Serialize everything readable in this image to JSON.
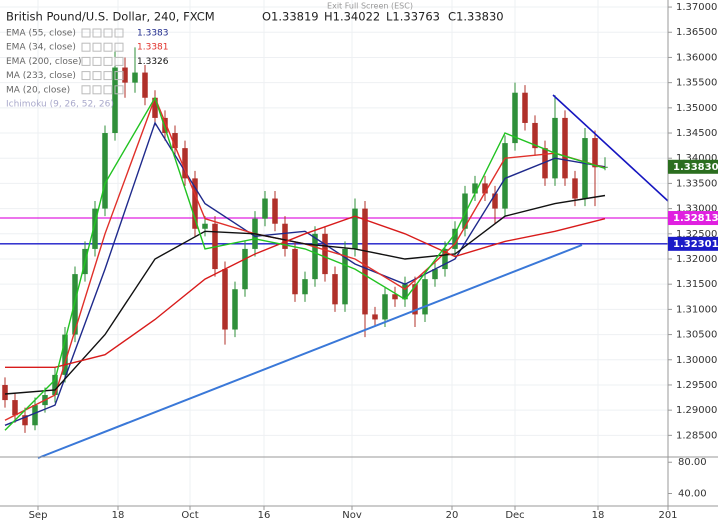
{
  "chart_data": [
    {
      "type": "candlestick",
      "title": "British Pound/U.S. Dollar, 240, FXCM",
      "ohlc_header": [
        "O1.33819",
        "H1.34022",
        "L1.33763",
        "C1.33830"
      ],
      "fullscreen_note": "Exit Full Screen (ESC)",
      "ichimoku": "Ichimoku (9, 26, 52, 26)",
      "up_color": "#2f8f3a",
      "down_color": "#b0302a",
      "xlim": [
        -0.5,
        66.3
      ],
      "ylim": [
        1.2811,
        1.3714
      ],
      "grid": true,
      "xticks": [
        {
          "value": 3.3,
          "label": "Sep"
        },
        {
          "value": 11.3,
          "label": "18"
        },
        {
          "value": 18.5,
          "label": "Oct"
        },
        {
          "value": 25.9,
          "label": "16"
        },
        {
          "value": 34.7,
          "label": "Nov"
        },
        {
          "value": 44.7,
          "label": "20"
        },
        {
          "value": 51,
          "label": "Dec"
        },
        {
          "value": 59.3,
          "label": "18"
        },
        {
          "value": 66.3,
          "label": "201"
        }
      ],
      "yticks": [
        {
          "value": 1.37,
          "label": "1.37000"
        },
        {
          "value": 1.365,
          "label": "1.36500"
        },
        {
          "value": 1.36,
          "label": "1.36000"
        },
        {
          "value": 1.355,
          "label": "1.35500"
        },
        {
          "value": 1.35,
          "label": "1.35000"
        },
        {
          "value": 1.345,
          "label": "1.34500"
        },
        {
          "value": 1.34,
          "label": "1.34000"
        },
        {
          "value": 1.335,
          "label": "1.33500"
        },
        {
          "value": 1.33,
          "label": "1.33000"
        },
        {
          "value": 1.325,
          "label": "1.32500"
        },
        {
          "value": 1.32,
          "label": "1.32000"
        },
        {
          "value": 1.315,
          "label": "1.31500"
        },
        {
          "value": 1.31,
          "label": "1.31000"
        },
        {
          "value": 1.305,
          "label": "1.30500"
        },
        {
          "value": 1.3,
          "label": "1.30000"
        },
        {
          "value": 1.295,
          "label": "1.29500"
        },
        {
          "value": 1.29,
          "label": "1.29000"
        },
        {
          "value": 1.285,
          "label": "1.28500"
        }
      ],
      "open": [
        1.295,
        1.292,
        1.289,
        1.287,
        1.291,
        1.293,
        1.297,
        1.305,
        1.317,
        1.322,
        1.33,
        1.345,
        1.358,
        1.355,
        1.357,
        1.352,
        1.348,
        1.345,
        1.342,
        1.336,
        1.326,
        1.327,
        1.318,
        1.306,
        1.314,
        1.322,
        1.328,
        1.332,
        1.327,
        1.322,
        1.313,
        1.316,
        1.325,
        1.317,
        1.311,
        1.322,
        1.33,
        1.309,
        1.308,
        1.313,
        1.312,
        1.315,
        1.309,
        1.316,
        1.318,
        1.322,
        1.326,
        1.333,
        1.335,
        1.333,
        1.33,
        1.343,
        1.353,
        1.347,
        1.342,
        1.336,
        1.348,
        1.336,
        1.332,
        1.344,
        1.3382
      ],
      "high": [
        1.2965,
        1.2935,
        1.2905,
        1.2925,
        1.2945,
        1.2985,
        1.3065,
        1.3185,
        1.3235,
        1.3315,
        1.3465,
        1.3615,
        1.36,
        1.362,
        1.3585,
        1.3535,
        1.3495,
        1.3465,
        1.3435,
        1.3375,
        1.3285,
        1.3285,
        1.3195,
        1.3155,
        1.3235,
        1.3295,
        1.3335,
        1.3335,
        1.3285,
        1.3235,
        1.3175,
        1.3265,
        1.3265,
        1.3185,
        1.3235,
        1.332,
        1.3315,
        1.3105,
        1.3145,
        1.3145,
        1.3165,
        1.3165,
        1.3175,
        1.3195,
        1.3235,
        1.3275,
        1.3345,
        1.3365,
        1.3365,
        1.3345,
        1.3445,
        1.355,
        1.3545,
        1.3485,
        1.3435,
        1.3525,
        1.3495,
        1.3375,
        1.346,
        1.3455,
        1.3402
      ],
      "low": [
        1.2905,
        1.2875,
        1.2855,
        1.286,
        1.2895,
        1.2915,
        1.2955,
        1.3035,
        1.3155,
        1.3205,
        1.3285,
        1.3435,
        1.352,
        1.353,
        1.3505,
        1.3465,
        1.3435,
        1.3405,
        1.3345,
        1.3245,
        1.3245,
        1.3165,
        1.303,
        1.3045,
        1.3125,
        1.3205,
        1.3265,
        1.3255,
        1.3205,
        1.3115,
        1.3115,
        1.3145,
        1.3155,
        1.3095,
        1.3095,
        1.3205,
        1.3045,
        1.3065,
        1.3065,
        1.3105,
        1.3105,
        1.3065,
        1.3075,
        1.3145,
        1.3165,
        1.3205,
        1.3245,
        1.3315,
        1.3315,
        1.327,
        1.3285,
        1.3415,
        1.3455,
        1.3405,
        1.3345,
        1.3345,
        1.3345,
        1.3305,
        1.3305,
        1.3305,
        1.3376
      ],
      "close": [
        1.292,
        1.289,
        1.287,
        1.291,
        1.293,
        1.297,
        1.305,
        1.317,
        1.322,
        1.33,
        1.345,
        1.358,
        1.355,
        1.357,
        1.352,
        1.348,
        1.345,
        1.342,
        1.336,
        1.326,
        1.327,
        1.318,
        1.306,
        1.314,
        1.322,
        1.328,
        1.332,
        1.327,
        1.322,
        1.313,
        1.316,
        1.325,
        1.317,
        1.311,
        1.322,
        1.33,
        1.309,
        1.308,
        1.313,
        1.312,
        1.315,
        1.309,
        1.316,
        1.318,
        1.322,
        1.326,
        1.333,
        1.335,
        1.333,
        1.33,
        1.343,
        1.353,
        1.347,
        1.342,
        1.336,
        1.348,
        1.336,
        1.332,
        1.344,
        1.3382,
        1.3383
      ],
      "series": [
        {
          "name": "EMA (55, close)",
          "color": "#1f2a8c",
          "show_last": true,
          "x": [
            0,
            5,
            10,
            15,
            20,
            25,
            30,
            35,
            40,
            45,
            50,
            55,
            60
          ],
          "values": [
            1.287,
            1.291,
            1.318,
            1.347,
            1.331,
            1.3245,
            1.3255,
            1.319,
            1.315,
            1.32,
            1.336,
            1.34,
            1.3383
          ]
        },
        {
          "name": "EMA (34, close)",
          "color": "#e0302a",
          "show_last": true,
          "x": [
            0,
            5,
            10,
            15,
            20,
            25,
            30,
            35,
            40,
            45,
            50,
            55,
            60
          ],
          "values": [
            1.288,
            1.293,
            1.325,
            1.352,
            1.328,
            1.325,
            1.323,
            1.32,
            1.314,
            1.323,
            1.34,
            1.341,
            1.3381
          ]
        },
        {
          "name": "EMA (200, close)",
          "color": "#111111",
          "show_last": true,
          "x": [
            0,
            5,
            10,
            15,
            20,
            25,
            30,
            35,
            40,
            45,
            50,
            55,
            60
          ],
          "values": [
            1.2932,
            1.294,
            1.305,
            1.32,
            1.3255,
            1.325,
            1.323,
            1.322,
            1.32,
            1.321,
            1.3285,
            1.331,
            1.3326
          ]
        },
        {
          "name": "MA (233, close)",
          "color": "#d81b1b",
          "show_last": false,
          "x": [
            0,
            5,
            10,
            15,
            20,
            25,
            30,
            35,
            40,
            45,
            50,
            55,
            60
          ],
          "values": [
            1.2985,
            1.2985,
            1.301,
            1.308,
            1.316,
            1.321,
            1.325,
            1.3285,
            1.325,
            1.3205,
            1.3235,
            1.3255,
            1.328
          ]
        },
        {
          "name": "MA (20, close)",
          "color": "#22c322",
          "show_last": false,
          "x": [
            0,
            5,
            10,
            15,
            20,
            25,
            30,
            35,
            40,
            45,
            50,
            55,
            60
          ],
          "values": [
            1.286,
            1.296,
            1.335,
            1.352,
            1.322,
            1.324,
            1.322,
            1.318,
            1.312,
            1.325,
            1.345,
            1.341,
            1.338
          ]
        }
      ],
      "price_tags": [
        {
          "value": 1.3383,
          "label": "1.33830",
          "color": "#2b6e1f",
          "line": false
        },
        {
          "value": 1.32813,
          "label": "1.32813",
          "color": "#e020e0",
          "line": true
        },
        {
          "value": 1.32301,
          "label": "1.32301",
          "color": "#1a1ac8",
          "line": true
        }
      ]
    },
    {
      "type": "indicator-pane",
      "ylim": [
        24,
        86.7
      ],
      "yticks": [
        {
          "value": 80,
          "label": "80.00"
        },
        {
          "value": 40,
          "label": "40.00"
        }
      ]
    }
  ]
}
